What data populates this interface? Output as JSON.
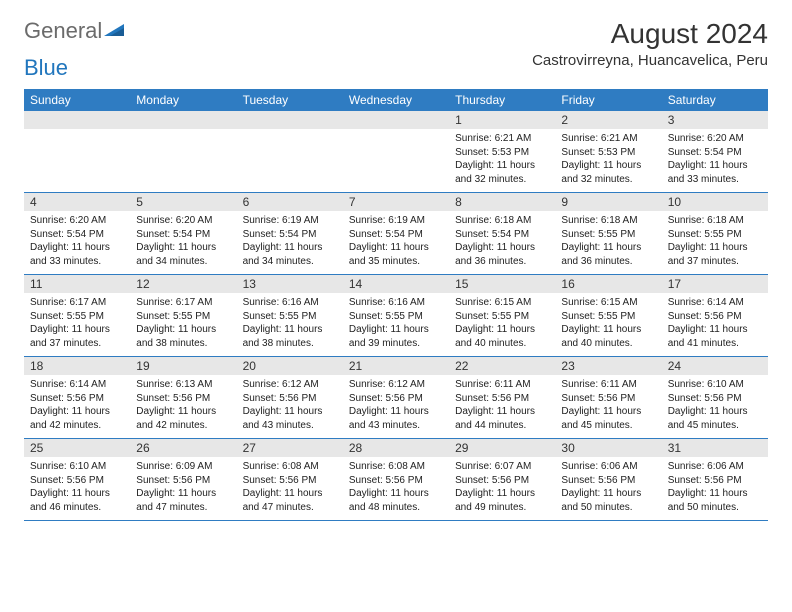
{
  "brand": {
    "part1": "General",
    "part2": "Blue",
    "color_gray": "#6b6b6b",
    "color_blue": "#2176bd"
  },
  "title": "August 2024",
  "subtitle": "Castrovirreyna, Huancavelica, Peru",
  "colors": {
    "header_bg": "#2f7cc2",
    "header_fg": "#ffffff",
    "daynum_bg": "#e7e7e7",
    "border": "#2f7cc2",
    "text": "#222222"
  },
  "day_headers": [
    "Sunday",
    "Monday",
    "Tuesday",
    "Wednesday",
    "Thursday",
    "Friday",
    "Saturday"
  ],
  "weeks": [
    [
      null,
      null,
      null,
      null,
      {
        "n": "1",
        "sr": "6:21 AM",
        "ss": "5:53 PM",
        "dl": "11 hours and 32 minutes."
      },
      {
        "n": "2",
        "sr": "6:21 AM",
        "ss": "5:53 PM",
        "dl": "11 hours and 32 minutes."
      },
      {
        "n": "3",
        "sr": "6:20 AM",
        "ss": "5:54 PM",
        "dl": "11 hours and 33 minutes."
      }
    ],
    [
      {
        "n": "4",
        "sr": "6:20 AM",
        "ss": "5:54 PM",
        "dl": "11 hours and 33 minutes."
      },
      {
        "n": "5",
        "sr": "6:20 AM",
        "ss": "5:54 PM",
        "dl": "11 hours and 34 minutes."
      },
      {
        "n": "6",
        "sr": "6:19 AM",
        "ss": "5:54 PM",
        "dl": "11 hours and 34 minutes."
      },
      {
        "n": "7",
        "sr": "6:19 AM",
        "ss": "5:54 PM",
        "dl": "11 hours and 35 minutes."
      },
      {
        "n": "8",
        "sr": "6:18 AM",
        "ss": "5:54 PM",
        "dl": "11 hours and 36 minutes."
      },
      {
        "n": "9",
        "sr": "6:18 AM",
        "ss": "5:55 PM",
        "dl": "11 hours and 36 minutes."
      },
      {
        "n": "10",
        "sr": "6:18 AM",
        "ss": "5:55 PM",
        "dl": "11 hours and 37 minutes."
      }
    ],
    [
      {
        "n": "11",
        "sr": "6:17 AM",
        "ss": "5:55 PM",
        "dl": "11 hours and 37 minutes."
      },
      {
        "n": "12",
        "sr": "6:17 AM",
        "ss": "5:55 PM",
        "dl": "11 hours and 38 minutes."
      },
      {
        "n": "13",
        "sr": "6:16 AM",
        "ss": "5:55 PM",
        "dl": "11 hours and 38 minutes."
      },
      {
        "n": "14",
        "sr": "6:16 AM",
        "ss": "5:55 PM",
        "dl": "11 hours and 39 minutes."
      },
      {
        "n": "15",
        "sr": "6:15 AM",
        "ss": "5:55 PM",
        "dl": "11 hours and 40 minutes."
      },
      {
        "n": "16",
        "sr": "6:15 AM",
        "ss": "5:55 PM",
        "dl": "11 hours and 40 minutes."
      },
      {
        "n": "17",
        "sr": "6:14 AM",
        "ss": "5:56 PM",
        "dl": "11 hours and 41 minutes."
      }
    ],
    [
      {
        "n": "18",
        "sr": "6:14 AM",
        "ss": "5:56 PM",
        "dl": "11 hours and 42 minutes."
      },
      {
        "n": "19",
        "sr": "6:13 AM",
        "ss": "5:56 PM",
        "dl": "11 hours and 42 minutes."
      },
      {
        "n": "20",
        "sr": "6:12 AM",
        "ss": "5:56 PM",
        "dl": "11 hours and 43 minutes."
      },
      {
        "n": "21",
        "sr": "6:12 AM",
        "ss": "5:56 PM",
        "dl": "11 hours and 43 minutes."
      },
      {
        "n": "22",
        "sr": "6:11 AM",
        "ss": "5:56 PM",
        "dl": "11 hours and 44 minutes."
      },
      {
        "n": "23",
        "sr": "6:11 AM",
        "ss": "5:56 PM",
        "dl": "11 hours and 45 minutes."
      },
      {
        "n": "24",
        "sr": "6:10 AM",
        "ss": "5:56 PM",
        "dl": "11 hours and 45 minutes."
      }
    ],
    [
      {
        "n": "25",
        "sr": "6:10 AM",
        "ss": "5:56 PM",
        "dl": "11 hours and 46 minutes."
      },
      {
        "n": "26",
        "sr": "6:09 AM",
        "ss": "5:56 PM",
        "dl": "11 hours and 47 minutes."
      },
      {
        "n": "27",
        "sr": "6:08 AM",
        "ss": "5:56 PM",
        "dl": "11 hours and 47 minutes."
      },
      {
        "n": "28",
        "sr": "6:08 AM",
        "ss": "5:56 PM",
        "dl": "11 hours and 48 minutes."
      },
      {
        "n": "29",
        "sr": "6:07 AM",
        "ss": "5:56 PM",
        "dl": "11 hours and 49 minutes."
      },
      {
        "n": "30",
        "sr": "6:06 AM",
        "ss": "5:56 PM",
        "dl": "11 hours and 50 minutes."
      },
      {
        "n": "31",
        "sr": "6:06 AM",
        "ss": "5:56 PM",
        "dl": "11 hours and 50 minutes."
      }
    ]
  ],
  "labels": {
    "sunrise": "Sunrise:",
    "sunset": "Sunset:",
    "daylight": "Daylight:"
  }
}
